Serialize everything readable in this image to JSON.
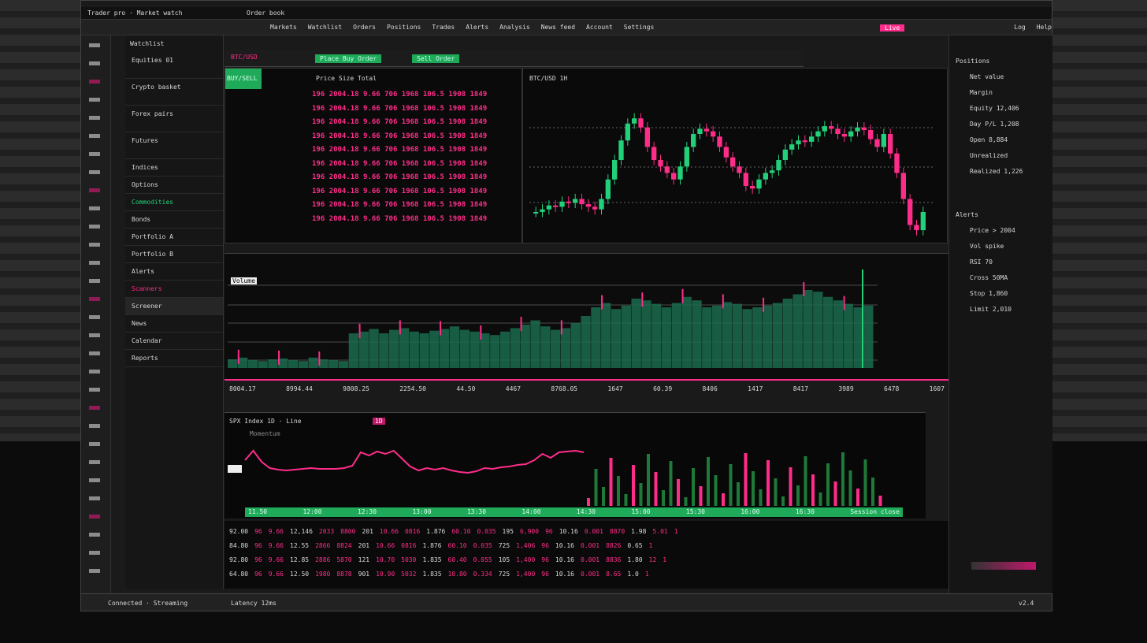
{
  "title_bar": {
    "left": "Trader pro · Market watch",
    "center": "Order book"
  },
  "menu": [
    "Markets",
    "Watchlist",
    "Orders",
    "Positions",
    "Trades",
    "Alerts",
    "Analysis",
    "News feed",
    "Account",
    "Settings"
  ],
  "menu_right": [
    "Log",
    "Help"
  ],
  "menu_active": "Live",
  "toolbar": {
    "buy_label": "Place Buy Order",
    "sell_label": "Sell Order",
    "symbol": "BTC/USD"
  },
  "left_panel": {
    "header": "Watchlist",
    "items": [
      "Equities 01",
      "Crypto basket",
      "Forex pairs",
      "Futures",
      "Indices",
      "Options",
      "Commodities",
      "Bonds",
      "Portfolio A",
      "Portfolio B",
      "Alerts",
      "Scanners",
      "Screener",
      "News",
      "Calendar",
      "Reports"
    ],
    "selected_index": 12
  },
  "order_book": {
    "tag": "BUY/SELL",
    "header": "Price  Size  Total",
    "rows": [
      "196 2004.18 9.66 706 1968 106.5 1908 1849",
      "196 2004.18 9.66 706 1968 106.5 1908 1849",
      "196 2004.18 9.66 706 1968 106.5 1908 1849",
      "196 2004.18 9.66 706 1968 106.5 1908 1849",
      "196 2004.18 9.66 706 1968 106.5 1908 1849",
      "196 2004.18 9.66 706 1968 106.5 1908 1849",
      "196 2004.18 9.66 706 1968 106.5 1908 1849",
      "196 2004.18 9.66 706 1968 106.5 1908 1849",
      "196 2004.18 9.66 706 1968 106.5 1908 1849",
      "196 2004.18 9.66 706 1968 106.5 1908 1849"
    ]
  },
  "main_chart": {
    "title": "BTC/USD 1H",
    "closes": [
      20,
      22,
      25,
      24,
      28,
      27,
      30,
      26,
      24,
      22,
      30,
      45,
      60,
      75,
      88,
      92,
      85,
      70,
      60,
      55,
      50,
      45,
      55,
      70,
      80,
      84,
      82,
      78,
      70,
      62,
      55,
      50,
      40,
      38,
      45,
      50,
      52,
      60,
      68,
      72,
      75,
      74,
      78,
      82,
      86,
      84,
      80,
      78,
      82,
      85,
      83,
      76,
      70,
      80,
      65,
      50,
      30,
      10,
      6,
      20
    ]
  },
  "volume_chart": {
    "title": "Volume",
    "values": [
      10,
      12,
      9,
      8,
      10,
      11,
      9,
      8,
      12,
      10,
      9,
      8,
      40,
      42,
      45,
      40,
      44,
      46,
      42,
      40,
      43,
      45,
      48,
      44,
      42,
      40,
      38,
      42,
      46,
      50,
      55,
      48,
      44,
      46,
      52,
      60,
      70,
      75,
      68,
      72,
      80,
      78,
      74,
      70,
      75,
      82,
      78,
      70,
      72,
      76,
      74,
      68,
      70,
      72,
      75,
      80,
      85,
      90,
      88,
      82,
      78,
      74,
      70,
      72
    ]
  },
  "stats_row": [
    "8004.17",
    "8994.44",
    "9808.25",
    "2254.50",
    "44.50",
    "4467",
    "8768.05",
    "1647",
    "60.39",
    "8406",
    "1417",
    "8417",
    "3989",
    "6478",
    "1607"
  ],
  "line_chart": {
    "title": "SPX Index 1D · Line",
    "badge": "1D",
    "subtitle": "Momentum",
    "values": [
      60,
      72,
      58,
      50,
      48,
      47,
      48,
      49,
      50,
      49,
      49,
      49,
      50,
      53,
      70,
      66,
      71,
      68,
      72,
      62,
      52,
      47,
      50,
      48,
      50,
      47,
      45,
      44,
      46,
      50,
      49,
      51,
      52,
      54,
      55,
      60,
      68,
      63,
      70,
      71,
      72,
      70
    ],
    "axis": [
      "11.50",
      "12:00",
      "12:30",
      "13:00",
      "13:30",
      "14:00",
      "14:30",
      "15:00",
      "15:30",
      "16:00",
      "16:30",
      "Session close"
    ]
  },
  "table": {
    "rows": [
      [
        "92.00",
        "96",
        "9.66",
        "12,146",
        "2033",
        "8800",
        "201",
        "10.66",
        "0816",
        "1.876",
        "60.10",
        "0.035",
        "195",
        "6,900",
        "96",
        "10.16",
        "0.001",
        "8870",
        "1.98",
        "5.01",
        "1"
      ],
      [
        "84.80",
        "96",
        "9.66",
        "12.55",
        "2866",
        "8824",
        "201",
        "10.66",
        "0816",
        "1.876",
        "60.10",
        "0.035",
        "725",
        "1,406",
        "96",
        "10.16",
        "0.001",
        "8826",
        "0.65",
        "1",
        ""
      ],
      [
        "92.80",
        "96",
        "9.66",
        "12.85",
        "2886",
        "5870",
        "121",
        "10.70",
        "5030",
        "1.835",
        "60.40",
        "0.055",
        "105",
        "1,400",
        "96",
        "10.16",
        "0.001",
        "8836",
        "1.80",
        "12",
        "1"
      ],
      [
        "64.80",
        "96",
        "9.66",
        "12.50",
        "1980",
        "8878",
        "901",
        "10.90",
        "5032",
        "1.835",
        "10.80",
        "0.334",
        "725",
        "1,400",
        "96",
        "10.16",
        "0.001",
        "8.65",
        "1.0",
        "1",
        ""
      ]
    ]
  },
  "right_panel": {
    "header": "Positions",
    "items": [
      "Net value",
      "Margin",
      "Equity 12,406",
      "Day P/L 1,208",
      "Open 8,884",
      "Unrealized",
      "Realized 1,226"
    ],
    "section2": "Alerts",
    "items2": [
      "Price > 2004",
      "Vol spike",
      "RSI 70",
      "Cross 50MA",
      "Stop 1,860",
      "Limit 2,010"
    ]
  },
  "status": {
    "left": "Connected · Streaming",
    "mid": "Latency 12ms",
    "right": "v2.4"
  },
  "colors": {
    "up": "#22d07a",
    "down": "#ff2d8a",
    "accent_green": "#1faa5a"
  }
}
